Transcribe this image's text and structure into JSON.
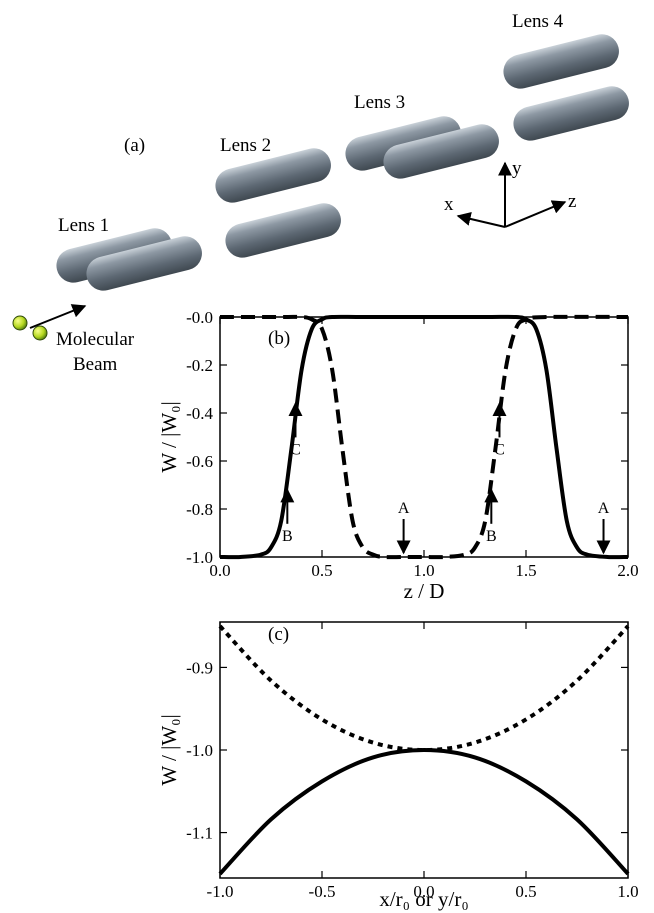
{
  "panel_a": {
    "label": "(a)",
    "lenses": [
      "Lens 1",
      "Lens 2",
      "Lens 3",
      "Lens 4"
    ],
    "beam_label_line1": "Molecular",
    "beam_label_line2": "Beam",
    "axes": {
      "x": "x",
      "y": "y",
      "z": "z"
    },
    "rod_color": "#6f7c88"
  },
  "chart_data": [
    {
      "type": "line",
      "panel_label": "(b)",
      "xlabel": "z / D",
      "ylabel": "W / |W₀|",
      "xlim": [
        0.0,
        2.0
      ],
      "ylim": [
        -1.0,
        0.0
      ],
      "xticks": [
        "0.0",
        "0.5",
        "1.0",
        "1.5",
        "2.0"
      ],
      "yticks": [
        "-0.0",
        "-0.2",
        "-0.4",
        "-0.6",
        "-0.8",
        "-1.0"
      ],
      "series": [
        {
          "style": "solid",
          "x": [
            0.0,
            0.1,
            0.2,
            0.25,
            0.3,
            0.35,
            0.4,
            0.45,
            0.5,
            0.55,
            0.7,
            1.0,
            1.3,
            1.45,
            1.5,
            1.55,
            1.6,
            1.65,
            1.7,
            1.75,
            1.8,
            1.9,
            2.0
          ],
          "y": [
            -1.0,
            -1.0,
            -0.99,
            -0.96,
            -0.85,
            -0.55,
            -0.22,
            -0.05,
            -0.01,
            0.0,
            0.0,
            0.0,
            0.0,
            0.0,
            -0.01,
            -0.05,
            -0.22,
            -0.55,
            -0.85,
            -0.96,
            -0.99,
            -1.0,
            -1.0
          ]
        },
        {
          "style": "dashed",
          "x": [
            0.0,
            0.3,
            0.4,
            0.45,
            0.5,
            0.55,
            0.6,
            0.65,
            0.7,
            0.75,
            0.8,
            0.9,
            1.0,
            1.1,
            1.2,
            1.25,
            1.3,
            1.35,
            1.4,
            1.45,
            1.5,
            1.6,
            2.0
          ],
          "y": [
            0.0,
            0.0,
            0.0,
            -0.01,
            -0.05,
            -0.22,
            -0.55,
            -0.85,
            -0.96,
            -0.99,
            -1.0,
            -1.0,
            -1.0,
            -1.0,
            -0.99,
            -0.96,
            -0.85,
            -0.55,
            -0.22,
            -0.05,
            -0.01,
            0.0,
            0.0
          ]
        }
      ],
      "annotations": [
        {
          "text": "A",
          "x": 0.9,
          "y": -1.0,
          "dir": "down"
        },
        {
          "text": "B",
          "x": 0.33,
          "y": -0.72,
          "dir": "up"
        },
        {
          "text": "C",
          "x": 0.37,
          "y": -0.36,
          "dir": "up"
        },
        {
          "text": "A",
          "x": 1.88,
          "y": -1.0,
          "dir": "down"
        },
        {
          "text": "B",
          "x": 1.33,
          "y": -0.72,
          "dir": "up"
        },
        {
          "text": "C",
          "x": 1.37,
          "y": -0.36,
          "dir": "up"
        }
      ]
    },
    {
      "type": "line",
      "panel_label": "(c)",
      "xlabel": "x/r₀ or y/r₀",
      "ylabel": "W / |W₀|",
      "xlim": [
        -1.0,
        1.0
      ],
      "ylim": [
        -1.155,
        -0.845
      ],
      "xticks": [
        "-1.0",
        "-0.5",
        "0.0",
        "0.5",
        "1.0"
      ],
      "yticks": [
        "-0.9",
        "-1.0",
        "-1.1"
      ],
      "series": [
        {
          "style": "dotted",
          "x": [
            -1.0,
            -0.75,
            -0.5,
            -0.25,
            0.0,
            0.25,
            0.5,
            0.75,
            1.0
          ],
          "y": [
            -0.85,
            -0.916,
            -0.963,
            -0.991,
            -1.0,
            -0.991,
            -0.963,
            -0.916,
            -0.85
          ]
        },
        {
          "style": "solid",
          "x": [
            -1.0,
            -0.75,
            -0.5,
            -0.25,
            0.0,
            0.25,
            0.5,
            0.75,
            1.0
          ],
          "y": [
            -1.15,
            -1.084,
            -1.038,
            -1.009,
            -1.0,
            -1.009,
            -1.038,
            -1.084,
            -1.15
          ]
        }
      ]
    }
  ]
}
